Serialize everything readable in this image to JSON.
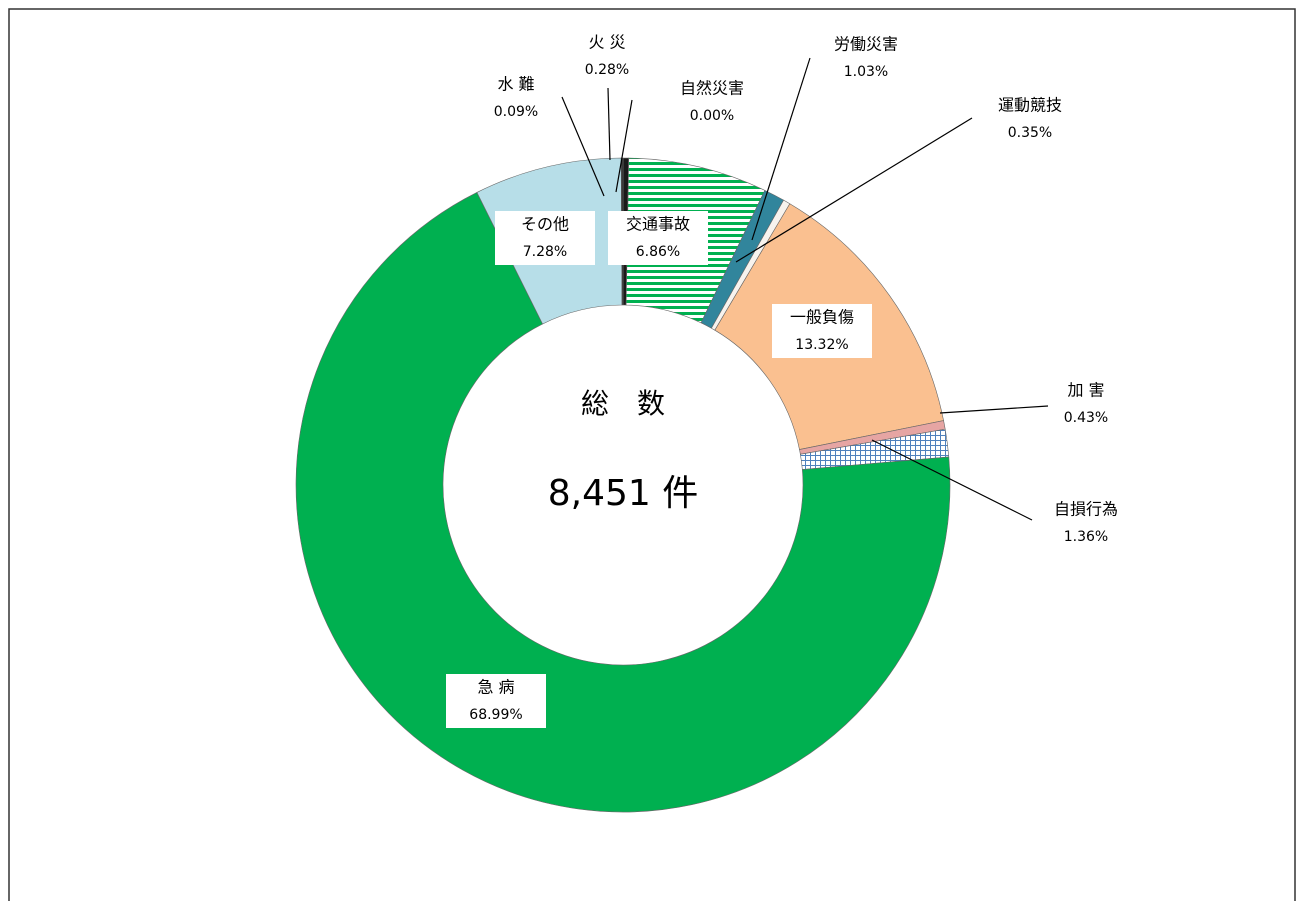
{
  "chart_data": {
    "type": "donut",
    "center_title": "総　数",
    "center_text": "8,451 件",
    "categories": [
      "火 災",
      "自然災害",
      "交通事故",
      "労働災害",
      "運動競技",
      "一般負傷",
      "加 害",
      "自損行為",
      "急 病",
      "その他",
      "水 難"
    ],
    "values": [
      0.28,
      0.0,
      6.86,
      1.03,
      0.35,
      13.32,
      0.43,
      1.36,
      68.99,
      7.28,
      0.09
    ],
    "value_labels": [
      "0.28%",
      "0.00%",
      "6.86%",
      "1.03%",
      "0.35%",
      "13.32%",
      "0.43%",
      "1.36%",
      "68.99%",
      "7.28%",
      "0.09%"
    ],
    "colors": [
      "#1a1a1a",
      "#7f7f7f",
      "#00b050",
      "#31859c",
      "#f7f3ee",
      "#fac090",
      "#e6a5a3",
      "#4f81bd",
      "#00b050",
      "#b7dee8",
      "#262626"
    ],
    "patterns": [
      null,
      null,
      "hstripe",
      null,
      null,
      null,
      null,
      "grid",
      null,
      null,
      null
    ]
  }
}
